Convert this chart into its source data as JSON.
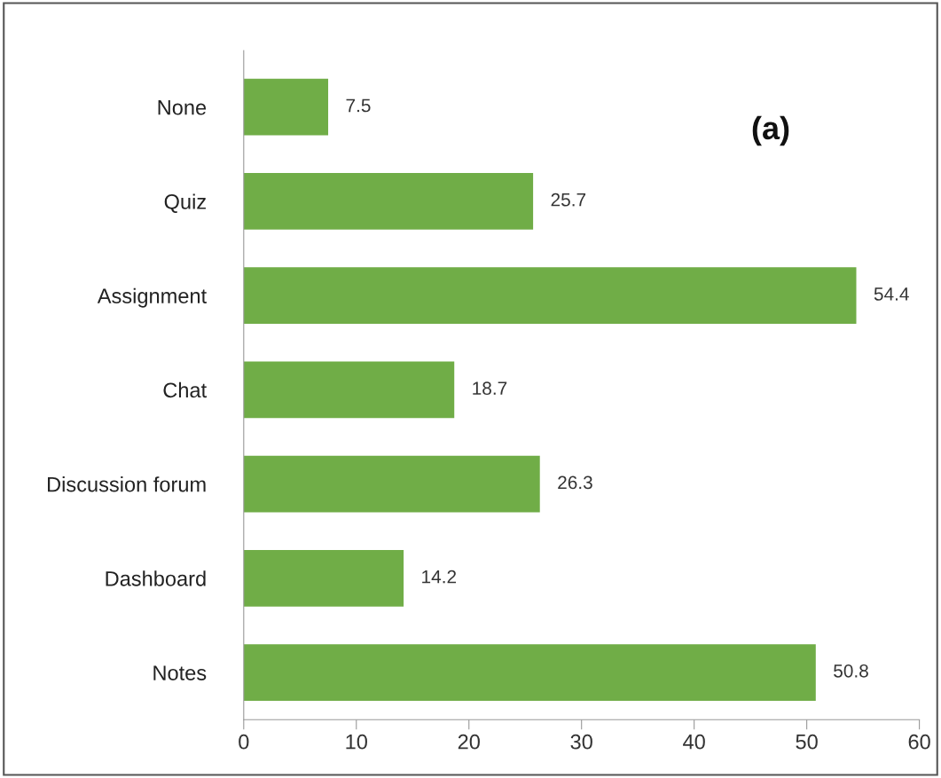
{
  "chart_data": {
    "type": "bar",
    "orientation": "horizontal",
    "categories": [
      "None",
      "Quiz",
      "Assignment",
      "Chat",
      "Discussion forum",
      "Dashboard",
      "Notes"
    ],
    "values": [
      7.5,
      25.7,
      54.4,
      18.7,
      26.3,
      14.2,
      50.8
    ],
    "color": "#70ad47",
    "xlim": [
      0,
      60
    ],
    "xticks": [
      0,
      10,
      20,
      30,
      40,
      50,
      60
    ],
    "data_labels": true,
    "grid": false,
    "legend": false,
    "annotations": [
      "(a)"
    ]
  }
}
